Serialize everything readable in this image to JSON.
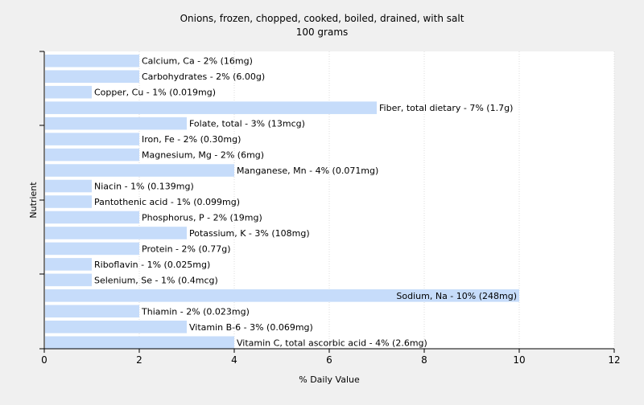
{
  "chart_data": {
    "type": "bar",
    "orientation": "horizontal",
    "title": "Onions, frozen, chopped, cooked, boiled, drained, with salt",
    "subtitle": "100 grams",
    "xlabel": "% Daily Value",
    "ylabel": "Nutrient",
    "xlim": [
      0,
      12
    ],
    "xticks": [
      "0",
      "2",
      "4",
      "6",
      "8",
      "10",
      "12"
    ],
    "grid": true,
    "bar_color": "#c6dcfa",
    "categories": [
      "Calcium, Ca",
      "Carbohydrates",
      "Copper, Cu",
      "Fiber, total dietary",
      "Folate, total",
      "Iron, Fe",
      "Magnesium, Mg",
      "Manganese, Mn",
      "Niacin",
      "Pantothenic acid",
      "Phosphorus, P",
      "Potassium, K",
      "Protein",
      "Riboflavin",
      "Selenium, Se",
      "Sodium, Na",
      "Thiamin",
      "Vitamin B-6",
      "Vitamin C, total ascorbic acid"
    ],
    "values": [
      2,
      2,
      1,
      7,
      3,
      2,
      2,
      4,
      1,
      1,
      2,
      3,
      2,
      1,
      1,
      10,
      2,
      3,
      4
    ],
    "labels": [
      "Calcium, Ca - 2% (16mg)",
      "Carbohydrates - 2% (6.00g)",
      "Copper, Cu - 1% (0.019mg)",
      "Fiber, total dietary - 7% (1.7g)",
      "Folate, total - 3% (13mcg)",
      "Iron, Fe - 2% (0.30mg)",
      "Magnesium, Mg - 2% (6mg)",
      "Manganese, Mn - 4% (0.071mg)",
      "Niacin - 1% (0.139mg)",
      "Pantothenic acid - 1% (0.099mg)",
      "Phosphorus, P - 2% (19mg)",
      "Potassium, K - 3% (108mg)",
      "Protein - 2% (0.77g)",
      "Riboflavin - 1% (0.025mg)",
      "Selenium, Se - 1% (0.4mcg)",
      "Sodium, Na - 10% (248mg)",
      "Thiamin - 2% (0.023mg)",
      "Vitamin B-6 - 3% (0.069mg)",
      "Vitamin C, total ascorbic acid - 4% (2.6mg)"
    ]
  }
}
